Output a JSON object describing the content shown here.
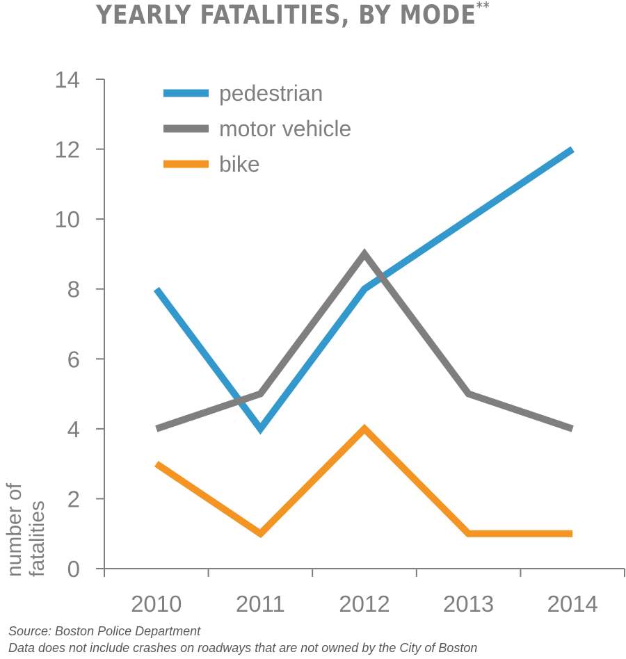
{
  "header": {
    "title": "YEARLY FATALITIES, BY MODE",
    "title_mark": "**"
  },
  "footer": {
    "source": "Source: Boston Police Department",
    "note": "Data does not include crashes on roadways that are not owned by the City of Boston"
  },
  "chart_data": {
    "type": "line",
    "title": "YEARLY FATALITIES, BY MODE**",
    "ylabel_line1": "number of",
    "ylabel_line2": "fatalities",
    "xlabel": "",
    "categories": [
      "2010",
      "2011",
      "2012",
      "2013",
      "2014"
    ],
    "yticks": [
      0,
      2,
      4,
      6,
      8,
      10,
      12,
      14
    ],
    "ylim": [
      0,
      14
    ],
    "grid": false,
    "legend": "top-left",
    "series": [
      {
        "name": "pedestrian",
        "color": "#3399cc",
        "values": [
          8,
          4,
          8,
          10,
          12
        ]
      },
      {
        "name": "motor vehicle",
        "color": "#7f7f7f",
        "values": [
          4,
          5,
          9,
          5,
          4
        ]
      },
      {
        "name": "bike",
        "color": "#f39423",
        "values": [
          3,
          1,
          4,
          1,
          1
        ]
      }
    ]
  }
}
